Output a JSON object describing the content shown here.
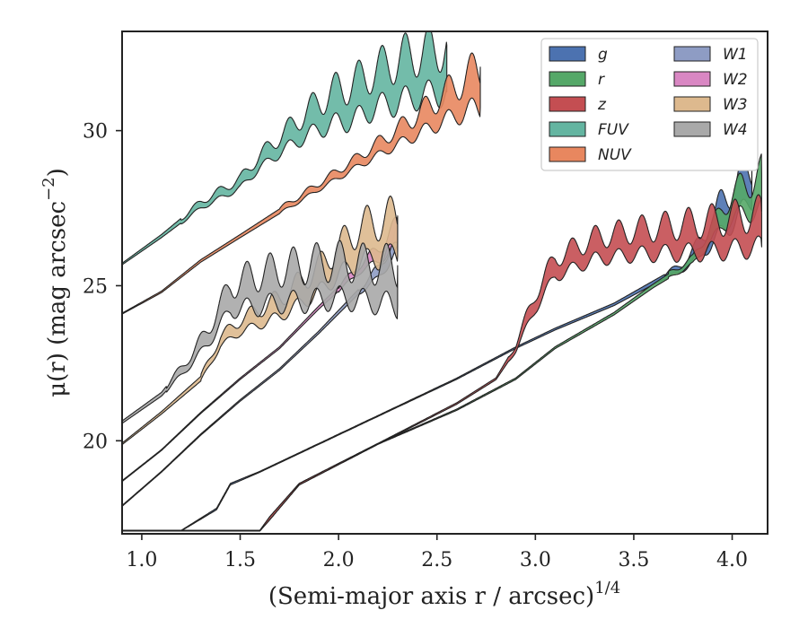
{
  "chart_data": {
    "type": "area",
    "xlabel": "(Semi-major axis r / arcsec)",
    "xlabel_superscript": "1/4",
    "ylabel": "μ(r) (mag arcsec",
    "ylabel_superscript": "−2",
    "ylabel_tail": ")",
    "xlim": [
      0.9,
      4.18
    ],
    "ylim": [
      33.2,
      17.0
    ],
    "y_inverted": true,
    "xticks": [
      1.0,
      1.5,
      2.0,
      2.5,
      3.0,
      3.5,
      4.0
    ],
    "xtick_labels": [
      "1.0",
      "1.5",
      "2.0",
      "2.5",
      "3.0",
      "3.5",
      "4.0"
    ],
    "yticks": [
      20,
      25,
      30
    ],
    "ytick_labels": [
      "20",
      "25",
      "30"
    ],
    "grid": false,
    "legend_position": "top-right",
    "legend_columns": 2,
    "series": [
      {
        "name": "g",
        "color": "#4C72B0",
        "x": [
          0.9,
          1.2,
          1.38,
          1.45,
          1.6,
          1.8,
          2.2,
          2.6,
          2.9,
          3.1,
          3.4,
          3.6,
          3.75,
          3.85,
          3.95,
          4.02,
          4.1
        ],
        "y": [
          17.1,
          17.1,
          17.8,
          18.6,
          19.0,
          19.6,
          20.8,
          22.0,
          23.0,
          23.6,
          24.4,
          25.1,
          25.6,
          26.3,
          27.2,
          27.8,
          28.2
        ],
        "y_spread": [
          0.02,
          0.02,
          0.05,
          0.05,
          0.03,
          0.03,
          0.03,
          0.04,
          0.05,
          0.06,
          0.08,
          0.12,
          0.2,
          0.5,
          1.0,
          1.2,
          1.0
        ]
      },
      {
        "name": "r",
        "color": "#55A868",
        "x": [
          0.9,
          1.6,
          1.65,
          1.8,
          2.2,
          2.6,
          2.9,
          3.1,
          3.4,
          3.6,
          3.8,
          3.95,
          4.05,
          4.15
        ],
        "y": [
          17.1,
          17.1,
          17.5,
          18.6,
          19.9,
          21.0,
          22.0,
          23.0,
          24.1,
          25.0,
          25.8,
          27.2,
          27.8,
          28.0
        ],
        "y_spread": [
          0.02,
          0.02,
          0.1,
          0.05,
          0.03,
          0.04,
          0.05,
          0.06,
          0.08,
          0.12,
          0.2,
          0.6,
          0.9,
          1.2
        ]
      },
      {
        "name": "z",
        "color": "#C44E52",
        "x": [
          0.9,
          1.6,
          1.65,
          1.8,
          2.2,
          2.6,
          2.8,
          2.9,
          3.0,
          3.1,
          3.3,
          3.5,
          3.7,
          3.9,
          4.15
        ],
        "y": [
          17.1,
          17.1,
          17.5,
          18.6,
          19.9,
          21.2,
          22.0,
          23.0,
          24.5,
          25.6,
          26.2,
          26.4,
          26.5,
          26.6,
          26.8
        ],
        "y_spread": [
          0.02,
          0.02,
          0.1,
          0.05,
          0.03,
          0.05,
          0.06,
          0.2,
          0.5,
          0.6,
          0.7,
          0.8,
          0.9,
          1.0,
          1.1
        ]
      },
      {
        "name": "FUV",
        "color": "#64B5A1",
        "x": [
          0.9,
          1.1,
          1.3,
          1.5,
          1.6,
          1.75,
          1.9,
          2.0,
          2.1,
          2.2,
          2.3,
          2.4,
          2.55
        ],
        "y": [
          25.7,
          26.6,
          27.6,
          28.3,
          29.0,
          29.8,
          30.5,
          30.8,
          31.0,
          31.4,
          31.6,
          31.8,
          32.0
        ],
        "y_spread": [
          0.05,
          0.1,
          0.2,
          0.3,
          0.4,
          0.6,
          0.9,
          1.1,
          1.2,
          1.2,
          1.4,
          1.4,
          1.5
        ]
      },
      {
        "name": "NUV",
        "color": "#E8875F",
        "x": [
          0.9,
          1.1,
          1.3,
          1.5,
          1.7,
          1.9,
          2.1,
          2.3,
          2.5,
          2.6,
          2.72
        ],
        "y": [
          24.1,
          24.8,
          25.8,
          26.6,
          27.4,
          28.2,
          29.0,
          29.8,
          30.6,
          31.0,
          31.4
        ],
        "y_spread": [
          0.03,
          0.05,
          0.08,
          0.1,
          0.15,
          0.2,
          0.3,
          0.5,
          0.8,
          1.0,
          1.3
        ]
      },
      {
        "name": "W1",
        "color": "#8E9CC4",
        "x": [
          0.9,
          1.1,
          1.3,
          1.5,
          1.7,
          1.9,
          2.1,
          2.2,
          2.3
        ],
        "y": [
          17.9,
          19.0,
          20.2,
          21.3,
          22.3,
          23.5,
          24.8,
          25.4,
          26.4
        ],
        "y_spread": [
          0.03,
          0.03,
          0.04,
          0.05,
          0.06,
          0.08,
          0.15,
          0.3,
          0.6
        ]
      },
      {
        "name": "W2",
        "color": "#D987C3",
        "x": [
          0.9,
          1.1,
          1.3,
          1.5,
          1.7,
          1.9,
          2.1,
          2.2,
          2.3
        ],
        "y": [
          18.7,
          19.7,
          20.9,
          22.0,
          23.0,
          24.3,
          25.5,
          26.0,
          26.6
        ],
        "y_spread": [
          0.03,
          0.03,
          0.04,
          0.05,
          0.06,
          0.1,
          0.2,
          0.4,
          0.7
        ]
      },
      {
        "name": "W3",
        "color": "#DDB98E",
        "x": [
          0.9,
          1.1,
          1.3,
          1.4,
          1.5,
          1.7,
          1.9,
          2.0,
          2.1,
          2.2,
          2.3
        ],
        "y": [
          19.9,
          20.9,
          22.0,
          23.2,
          23.7,
          24.3,
          25.2,
          25.8,
          26.3,
          26.5,
          26.6
        ],
        "y_spread": [
          0.05,
          0.08,
          0.15,
          0.3,
          0.4,
          0.6,
          0.8,
          0.9,
          1.1,
          1.2,
          1.3
        ]
      },
      {
        "name": "W4",
        "color": "#A9A9A9",
        "x": [
          0.9,
          1.1,
          1.25,
          1.35,
          1.45,
          1.55,
          1.7,
          1.85,
          2.0,
          2.15,
          2.3
        ],
        "y": [
          20.6,
          21.5,
          22.6,
          23.5,
          24.6,
          24.8,
          25.0,
          25.1,
          25.2,
          25.1,
          25.0
        ],
        "y_spread": [
          0.08,
          0.12,
          0.3,
          0.5,
          0.8,
          1.0,
          1.1,
          1.2,
          1.2,
          1.2,
          1.3
        ]
      }
    ]
  }
}
